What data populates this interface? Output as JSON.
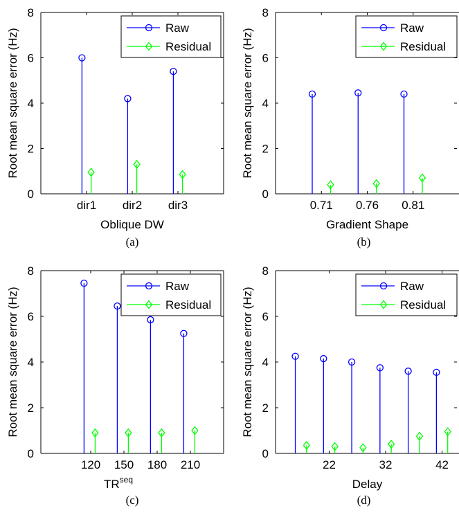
{
  "colors": {
    "raw": "#0000ff",
    "residual": "#00ff00",
    "axis": "#000000"
  },
  "chart_data": [
    {
      "type": "stem",
      "panel_label": "(a)",
      "xlabel": "Oblique DW",
      "ylabel": "Root mean square error (Hz)",
      "ylim": [
        0,
        8
      ],
      "yticks": [
        0,
        2,
        4,
        6,
        8
      ],
      "xlim": [
        0,
        4
      ],
      "xticks": [
        1,
        2,
        3
      ],
      "xticklabels": [
        "dir1",
        "dir2",
        "dir3"
      ],
      "legend": {
        "position": "top-right",
        "entries": [
          "Raw",
          "Residual"
        ]
      },
      "series": [
        {
          "name": "Raw",
          "marker": "circle",
          "x": [
            0.9,
            1.9,
            2.9
          ],
          "values": [
            6.0,
            4.2,
            5.4
          ]
        },
        {
          "name": "Residual",
          "marker": "diamond",
          "x": [
            1.1,
            2.1,
            3.1
          ],
          "values": [
            0.95,
            1.3,
            0.85
          ]
        }
      ]
    },
    {
      "type": "stem",
      "panel_label": "(b)",
      "xlabel": "Gradient Shape",
      "ylabel": "Root mean square error (Hz)",
      "ylim": [
        0,
        8
      ],
      "yticks": [
        0,
        2,
        4,
        6,
        8
      ],
      "xlim": [
        0.66,
        0.86
      ],
      "xticks": [
        0.71,
        0.76,
        0.81
      ],
      "xticklabels": [
        "0.71",
        "0.76",
        "0.81"
      ],
      "legend": {
        "position": "top-right",
        "entries": [
          "Raw",
          "Residual"
        ]
      },
      "series": [
        {
          "name": "Raw",
          "marker": "circle",
          "x": [
            0.7,
            0.75,
            0.8
          ],
          "values": [
            4.4,
            4.45,
            4.4
          ]
        },
        {
          "name": "Residual",
          "marker": "diamond",
          "x": [
            0.72,
            0.77,
            0.82
          ],
          "values": [
            0.4,
            0.45,
            0.7
          ]
        }
      ]
    },
    {
      "type": "stem",
      "panel_label": "(c)",
      "xlabel": "TR",
      "xlabel_sup": "seq",
      "ylabel": "Root mean square error (Hz)",
      "ylim": [
        0,
        8
      ],
      "yticks": [
        0,
        2,
        4,
        6,
        8
      ],
      "xlim": [
        75,
        240
      ],
      "xticks": [
        120,
        150,
        180,
        210
      ],
      "xticklabels": [
        "120",
        "150",
        "180",
        "210"
      ],
      "legend": {
        "position": "top-right",
        "entries": [
          "Raw",
          "Residual"
        ]
      },
      "series": [
        {
          "name": "Raw",
          "marker": "circle",
          "x": [
            114,
            144,
            174,
            204
          ],
          "values": [
            7.45,
            6.45,
            5.85,
            5.25
          ]
        },
        {
          "name": "Residual",
          "marker": "diamond",
          "x": [
            124,
            154,
            184,
            214
          ],
          "values": [
            0.9,
            0.9,
            0.9,
            1.0
          ]
        }
      ]
    },
    {
      "type": "stem",
      "panel_label": "(d)",
      "xlabel": "Delay",
      "ylabel": "Root mean square error (Hz)",
      "ylim": [
        0,
        8
      ],
      "yticks": [
        0,
        2,
        4,
        6,
        8
      ],
      "xlim": [
        12.5,
        45
      ],
      "xticks": [
        22,
        32,
        42
      ],
      "xticklabels": [
        "22",
        "32",
        "42"
      ],
      "legend": {
        "position": "top-right",
        "entries": [
          "Raw",
          "Residual"
        ]
      },
      "series": [
        {
          "name": "Raw",
          "marker": "circle",
          "x": [
            16,
            21,
            26,
            31,
            36,
            41
          ],
          "values": [
            4.25,
            4.15,
            4.0,
            3.75,
            3.6,
            3.55
          ]
        },
        {
          "name": "Residual",
          "marker": "diamond",
          "x": [
            18,
            23,
            28,
            33,
            38,
            43
          ],
          "values": [
            0.35,
            0.3,
            0.25,
            0.4,
            0.75,
            0.95
          ]
        }
      ]
    }
  ]
}
